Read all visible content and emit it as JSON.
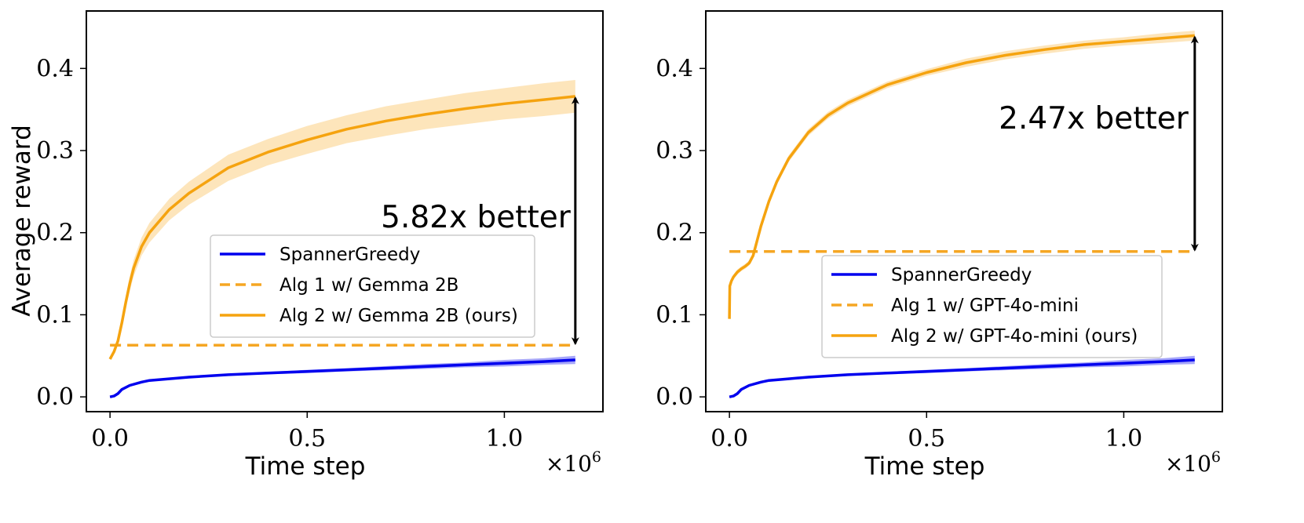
{
  "chart_data": [
    {
      "type": "line",
      "xlabel": "Time step",
      "ylabel": "Average reward",
      "x_multiplier_base": "×10",
      "x_multiplier_exp": "6",
      "xlim": [
        -0.06,
        1.25
      ],
      "ylim": [
        -0.018,
        0.47
      ],
      "x_ticks": [
        0.0,
        0.5,
        1.0
      ],
      "x_tick_labels": [
        "0.0",
        "0.5",
        "1.0"
      ],
      "y_ticks": [
        0.0,
        0.1,
        0.2,
        0.3,
        0.4
      ],
      "y_tick_labels": [
        "0.0",
        "0.1",
        "0.2",
        "0.3",
        "0.4"
      ],
      "legend_position": "center-right",
      "annotation": {
        "text": "5.82x better",
        "x": 1.18,
        "y_from": 0.063,
        "y_to": 0.366
      },
      "series": [
        {
          "name": "SpannerGreedy",
          "style": "solid",
          "color": "#0000ee",
          "band_color": "#6b6bf5",
          "x": [
            0.0,
            0.01,
            0.02,
            0.03,
            0.05,
            0.08,
            0.1,
            0.15,
            0.2,
            0.3,
            0.4,
            0.5,
            0.6,
            0.7,
            0.8,
            0.9,
            1.0,
            1.1,
            1.18
          ],
          "values": [
            0.0,
            0.001,
            0.004,
            0.009,
            0.014,
            0.018,
            0.02,
            0.022,
            0.024,
            0.027,
            0.029,
            0.031,
            0.033,
            0.035,
            0.037,
            0.039,
            0.041,
            0.043,
            0.045
          ],
          "band": [
            0.001,
            0.001,
            0.001,
            0.001,
            0.001,
            0.001,
            0.001,
            0.001,
            0.001,
            0.001,
            0.0015,
            0.002,
            0.002,
            0.0025,
            0.003,
            0.003,
            0.004,
            0.004,
            0.005
          ]
        },
        {
          "name": "Alg 1 w/ Gemma 2B",
          "style": "dashed",
          "color": "#f5a623",
          "x": [
            0.0,
            1.18
          ],
          "values": [
            0.063,
            0.063
          ]
        },
        {
          "name": "Alg 2 w/ Gemma 2B (ours)",
          "style": "solid",
          "color": "#f5a30f",
          "band_color": "#fcd48d",
          "x": [
            0.0,
            0.01,
            0.02,
            0.03,
            0.04,
            0.05,
            0.06,
            0.08,
            0.1,
            0.15,
            0.2,
            0.3,
            0.4,
            0.5,
            0.6,
            0.7,
            0.8,
            0.9,
            1.0,
            1.1,
            1.18
          ],
          "values": [
            0.046,
            0.055,
            0.068,
            0.09,
            0.115,
            0.138,
            0.157,
            0.183,
            0.2,
            0.228,
            0.248,
            0.279,
            0.298,
            0.313,
            0.326,
            0.336,
            0.344,
            0.351,
            0.357,
            0.362,
            0.366
          ],
          "band": [
            0.0,
            0.002,
            0.004,
            0.006,
            0.008,
            0.009,
            0.01,
            0.011,
            0.012,
            0.013,
            0.014,
            0.016,
            0.016,
            0.017,
            0.017,
            0.018,
            0.018,
            0.019,
            0.019,
            0.02,
            0.02
          ]
        }
      ]
    },
    {
      "type": "line",
      "xlabel": "Time step",
      "ylabel": "",
      "x_multiplier_base": "×10",
      "x_multiplier_exp": "6",
      "xlim": [
        -0.06,
        1.25
      ],
      "ylim": [
        -0.018,
        0.47
      ],
      "x_ticks": [
        0.0,
        0.5,
        1.0
      ],
      "x_tick_labels": [
        "0.0",
        "0.5",
        "1.0"
      ],
      "y_ticks": [
        0.0,
        0.1,
        0.2,
        0.3,
        0.4
      ],
      "y_tick_labels": [
        "0.0",
        "0.1",
        "0.2",
        "0.3",
        "0.4"
      ],
      "legend_position": "lower-right",
      "annotation": {
        "text": "2.47x better",
        "x": 1.18,
        "y_from": 0.177,
        "y_to": 0.44
      },
      "series": [
        {
          "name": "SpannerGreedy",
          "style": "solid",
          "color": "#0000ee",
          "band_color": "#6b6bf5",
          "x": [
            0.0,
            0.01,
            0.02,
            0.03,
            0.05,
            0.08,
            0.1,
            0.15,
            0.2,
            0.3,
            0.4,
            0.5,
            0.6,
            0.7,
            0.8,
            0.9,
            1.0,
            1.1,
            1.18
          ],
          "values": [
            0.0,
            0.001,
            0.004,
            0.009,
            0.014,
            0.018,
            0.02,
            0.022,
            0.024,
            0.027,
            0.029,
            0.031,
            0.033,
            0.035,
            0.037,
            0.039,
            0.041,
            0.043,
            0.045
          ],
          "band": [
            0.001,
            0.001,
            0.001,
            0.001,
            0.001,
            0.001,
            0.001,
            0.001,
            0.001,
            0.001,
            0.0015,
            0.002,
            0.002,
            0.0025,
            0.003,
            0.003,
            0.004,
            0.004,
            0.005
          ]
        },
        {
          "name": "Alg 1 w/ GPT-4o-mini",
          "style": "dashed",
          "color": "#f5a623",
          "x": [
            0.0,
            1.18
          ],
          "values": [
            0.177,
            0.177
          ]
        },
        {
          "name": "Alg 2 w/ GPT-4o-mini (ours)",
          "style": "solid",
          "color": "#f5a30f",
          "band_color": "#fcd48d",
          "x": [
            0.0,
            0.001,
            0.005,
            0.01,
            0.02,
            0.03,
            0.04,
            0.05,
            0.06,
            0.07,
            0.08,
            0.1,
            0.12,
            0.15,
            0.2,
            0.25,
            0.3,
            0.4,
            0.5,
            0.6,
            0.7,
            0.8,
            0.9,
            1.0,
            1.1,
            1.18
          ],
          "values": [
            0.095,
            0.135,
            0.141,
            0.146,
            0.152,
            0.156,
            0.159,
            0.163,
            0.172,
            0.19,
            0.208,
            0.238,
            0.262,
            0.29,
            0.322,
            0.343,
            0.358,
            0.38,
            0.395,
            0.407,
            0.416,
            0.423,
            0.429,
            0.433,
            0.437,
            0.44
          ],
          "band": [
            0.006,
            0.003,
            0.003,
            0.003,
            0.003,
            0.003,
            0.003,
            0.003,
            0.003,
            0.004,
            0.004,
            0.004,
            0.004,
            0.004,
            0.004,
            0.004,
            0.004,
            0.004,
            0.004,
            0.005,
            0.005,
            0.005,
            0.005,
            0.005,
            0.006,
            0.006
          ]
        }
      ]
    }
  ]
}
